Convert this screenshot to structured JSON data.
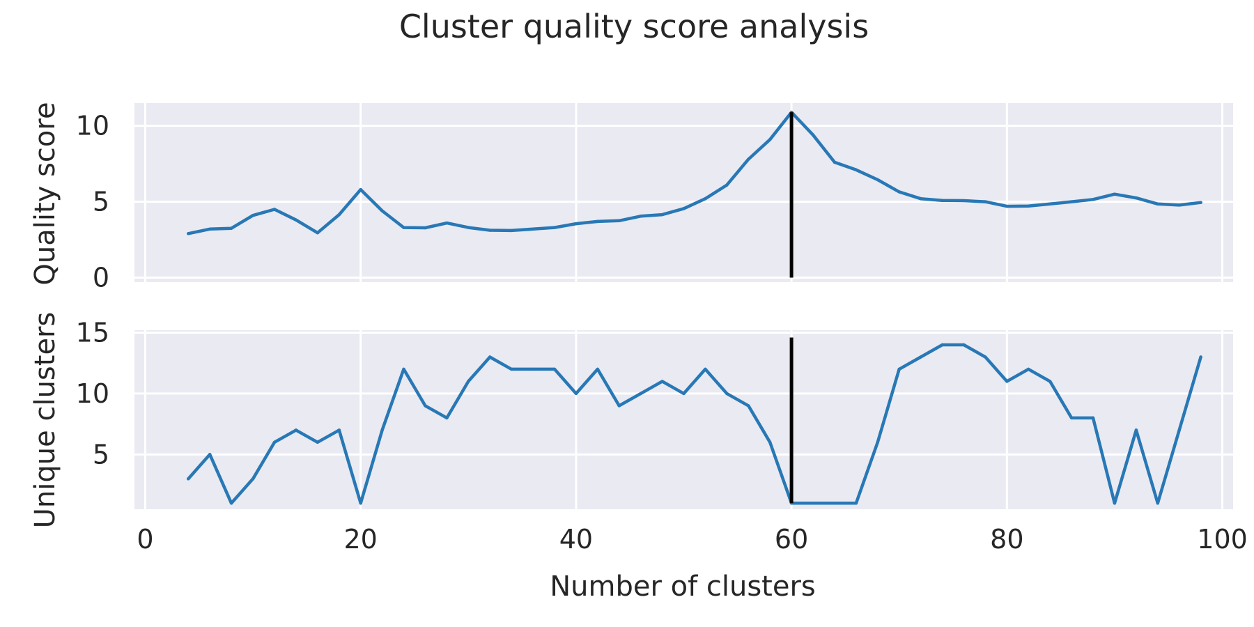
{
  "chart_data": {
    "type": "line",
    "title": "Cluster quality score analysis",
    "xlabel": "Number of clusters",
    "xlim": [
      -1,
      101
    ],
    "xticks": [
      0,
      20,
      40,
      60,
      80,
      100
    ],
    "x": [
      4,
      6,
      8,
      10,
      12,
      14,
      16,
      18,
      20,
      22,
      24,
      26,
      28,
      30,
      32,
      34,
      36,
      38,
      40,
      42,
      44,
      46,
      48,
      50,
      52,
      54,
      56,
      58,
      60,
      62,
      64,
      66,
      68,
      70,
      72,
      74,
      76,
      78,
      80,
      82,
      84,
      86,
      88,
      90,
      92,
      94,
      96,
      98
    ],
    "marker_x": 60,
    "line_color": "#2878b5",
    "marker_color": "#000000",
    "background_color": "#eaeaf2",
    "grid": true,
    "panels": [
      {
        "ylabel": "Quality score",
        "ylim": [
          -0.3,
          11.5
        ],
        "yticks": [
          0,
          5,
          10
        ],
        "marker_y_range": [
          0,
          10.9
        ],
        "series": [
          {
            "values": [
              2.9,
              3.2,
              3.25,
              4.1,
              4.5,
              3.8,
              2.95,
              4.15,
              5.8,
              4.4,
              3.3,
              3.28,
              3.6,
              3.3,
              3.12,
              3.1,
              3.2,
              3.3,
              3.55,
              3.7,
              3.75,
              4.05,
              4.15,
              4.55,
              5.2,
              6.1,
              7.8,
              9.1,
              10.9,
              9.4,
              7.6,
              7.1,
              6.45,
              5.65,
              5.2,
              5.08,
              5.07,
              5.0,
              4.7,
              4.72,
              4.85,
              5.0,
              5.15,
              5.5,
              5.25,
              4.85,
              4.78,
              4.95
            ]
          }
        ]
      },
      {
        "ylabel": "Unique clusters",
        "ylim": [
          0.5,
          15.2
        ],
        "yticks": [
          5,
          10,
          15
        ],
        "marker_y_range": [
          1,
          14.6
        ],
        "series": [
          {
            "values": [
              3,
              5,
              1,
              3,
              6,
              7,
              6,
              7,
              1,
              7,
              12,
              9,
              8,
              11,
              13,
              12,
              12,
              12,
              10,
              12,
              9,
              10,
              11,
              10,
              12,
              10,
              9,
              6,
              1,
              1,
              1,
              1,
              6,
              12,
              13,
              14,
              14,
              13,
              11,
              12,
              11,
              8,
              8,
              1,
              7,
              1,
              7,
              13
            ]
          }
        ]
      }
    ]
  }
}
